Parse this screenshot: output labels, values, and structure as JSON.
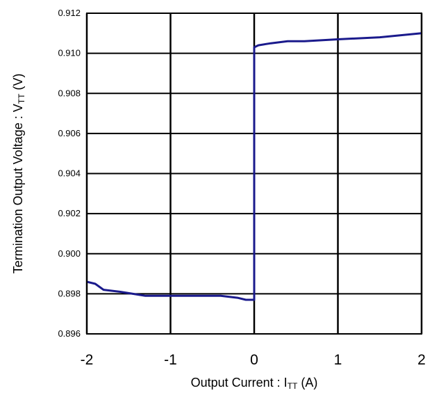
{
  "chart_data": {
    "type": "line",
    "xlabel": "Output Current : ITT (A)",
    "xlabel_parts": {
      "pre": "Output Current : I",
      "sub": "TT",
      "post": " (A)"
    },
    "ylabel": "Termination Output Voltage : VTT (V)",
    "ylabel_parts": {
      "pre": "Termination Output Voltage : V",
      "sub": "TT",
      "post": " (V)"
    },
    "xlim": [
      -2,
      2
    ],
    "ylim": [
      0.896,
      0.912
    ],
    "x_ticks": [
      "-2",
      "-1",
      "0",
      "1",
      "2"
    ],
    "y_ticks": [
      "0.912",
      "0.910",
      "0.908",
      "0.906",
      "0.904",
      "0.902",
      "0.900",
      "0.898",
      "0.896"
    ],
    "grid": true,
    "line_color": "#1a1a8c",
    "series": [
      {
        "x": [
          -2.0,
          -1.9,
          -1.8,
          -1.6,
          -1.45,
          -1.3,
          -1.0,
          -0.7,
          -0.4,
          -0.2,
          -0.1,
          0.0,
          0.0,
          0.05,
          0.2,
          0.4,
          0.6,
          1.0,
          1.5,
          2.0
        ],
        "y": [
          0.8986,
          0.8985,
          0.8982,
          0.8981,
          0.898,
          0.8979,
          0.8979,
          0.8979,
          0.8979,
          0.8978,
          0.8977,
          0.8977,
          0.9103,
          0.9104,
          0.9105,
          0.9106,
          0.9106,
          0.9107,
          0.9108,
          0.911
        ]
      }
    ]
  }
}
